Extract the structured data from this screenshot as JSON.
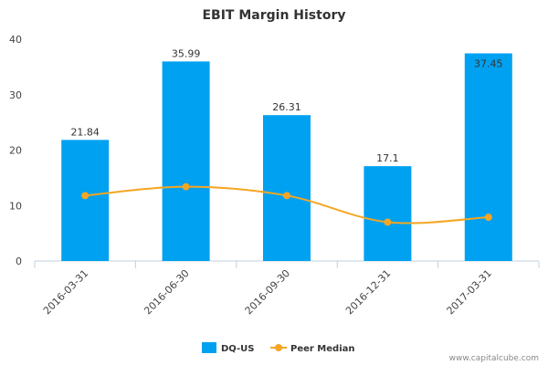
{
  "chart_data": {
    "type": "bar",
    "title": "EBIT Margin History",
    "categories": [
      "2016-03-31",
      "2016-06-30",
      "2016-09-30",
      "2016-12-31",
      "2017-03-31"
    ],
    "series": [
      {
        "name": "DQ-US",
        "type": "bar",
        "values": [
          21.84,
          35.99,
          26.31,
          17.1,
          37.45
        ],
        "labels": [
          "21.84",
          "35.99",
          "26.31",
          "17.1",
          "37.45"
        ],
        "color": "#00a1f1"
      },
      {
        "name": "Peer Median",
        "type": "line",
        "values": [
          11.8,
          13.4,
          11.8,
          7.0,
          7.9
        ],
        "color": "#f5a623"
      }
    ],
    "ylim": [
      0,
      40
    ],
    "yticks": [
      "0",
      "10",
      "20",
      "30",
      "40"
    ],
    "legend_position": "bottom",
    "grid": false
  },
  "credit": "www.capitalcube.com"
}
